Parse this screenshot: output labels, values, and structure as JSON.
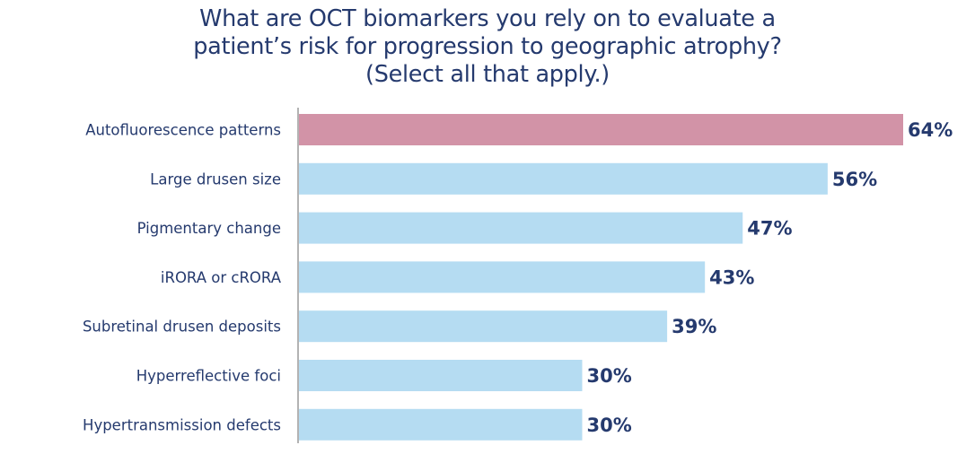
{
  "chart_data": {
    "type": "bar",
    "orientation": "horizontal",
    "title_lines": [
      "What are OCT biomarkers you rely on to evaluate a",
      "patient’s risk for progression to geographic atrophy?",
      "(Select all that apply.)"
    ],
    "categories": [
      "Autofluorescence patterns",
      "Large drusen size",
      "Pigmentary change",
      "iRORA or cRORA",
      "Subretinal drusen deposits",
      "Hyperreflective foci",
      "Hypertransmission defects"
    ],
    "values": [
      64,
      56,
      47,
      43,
      39,
      30,
      30
    ],
    "value_labels": [
      "64%",
      "56%",
      "47%",
      "43%",
      "39%",
      "30%",
      "30%"
    ],
    "unit": "%",
    "xlim": [
      0,
      64
    ],
    "highlight_index": 0,
    "colors": {
      "highlight": "#d293a7",
      "bar": "#b5dcf2",
      "text": "#253a6e",
      "axis": "#9a9a9a"
    }
  }
}
